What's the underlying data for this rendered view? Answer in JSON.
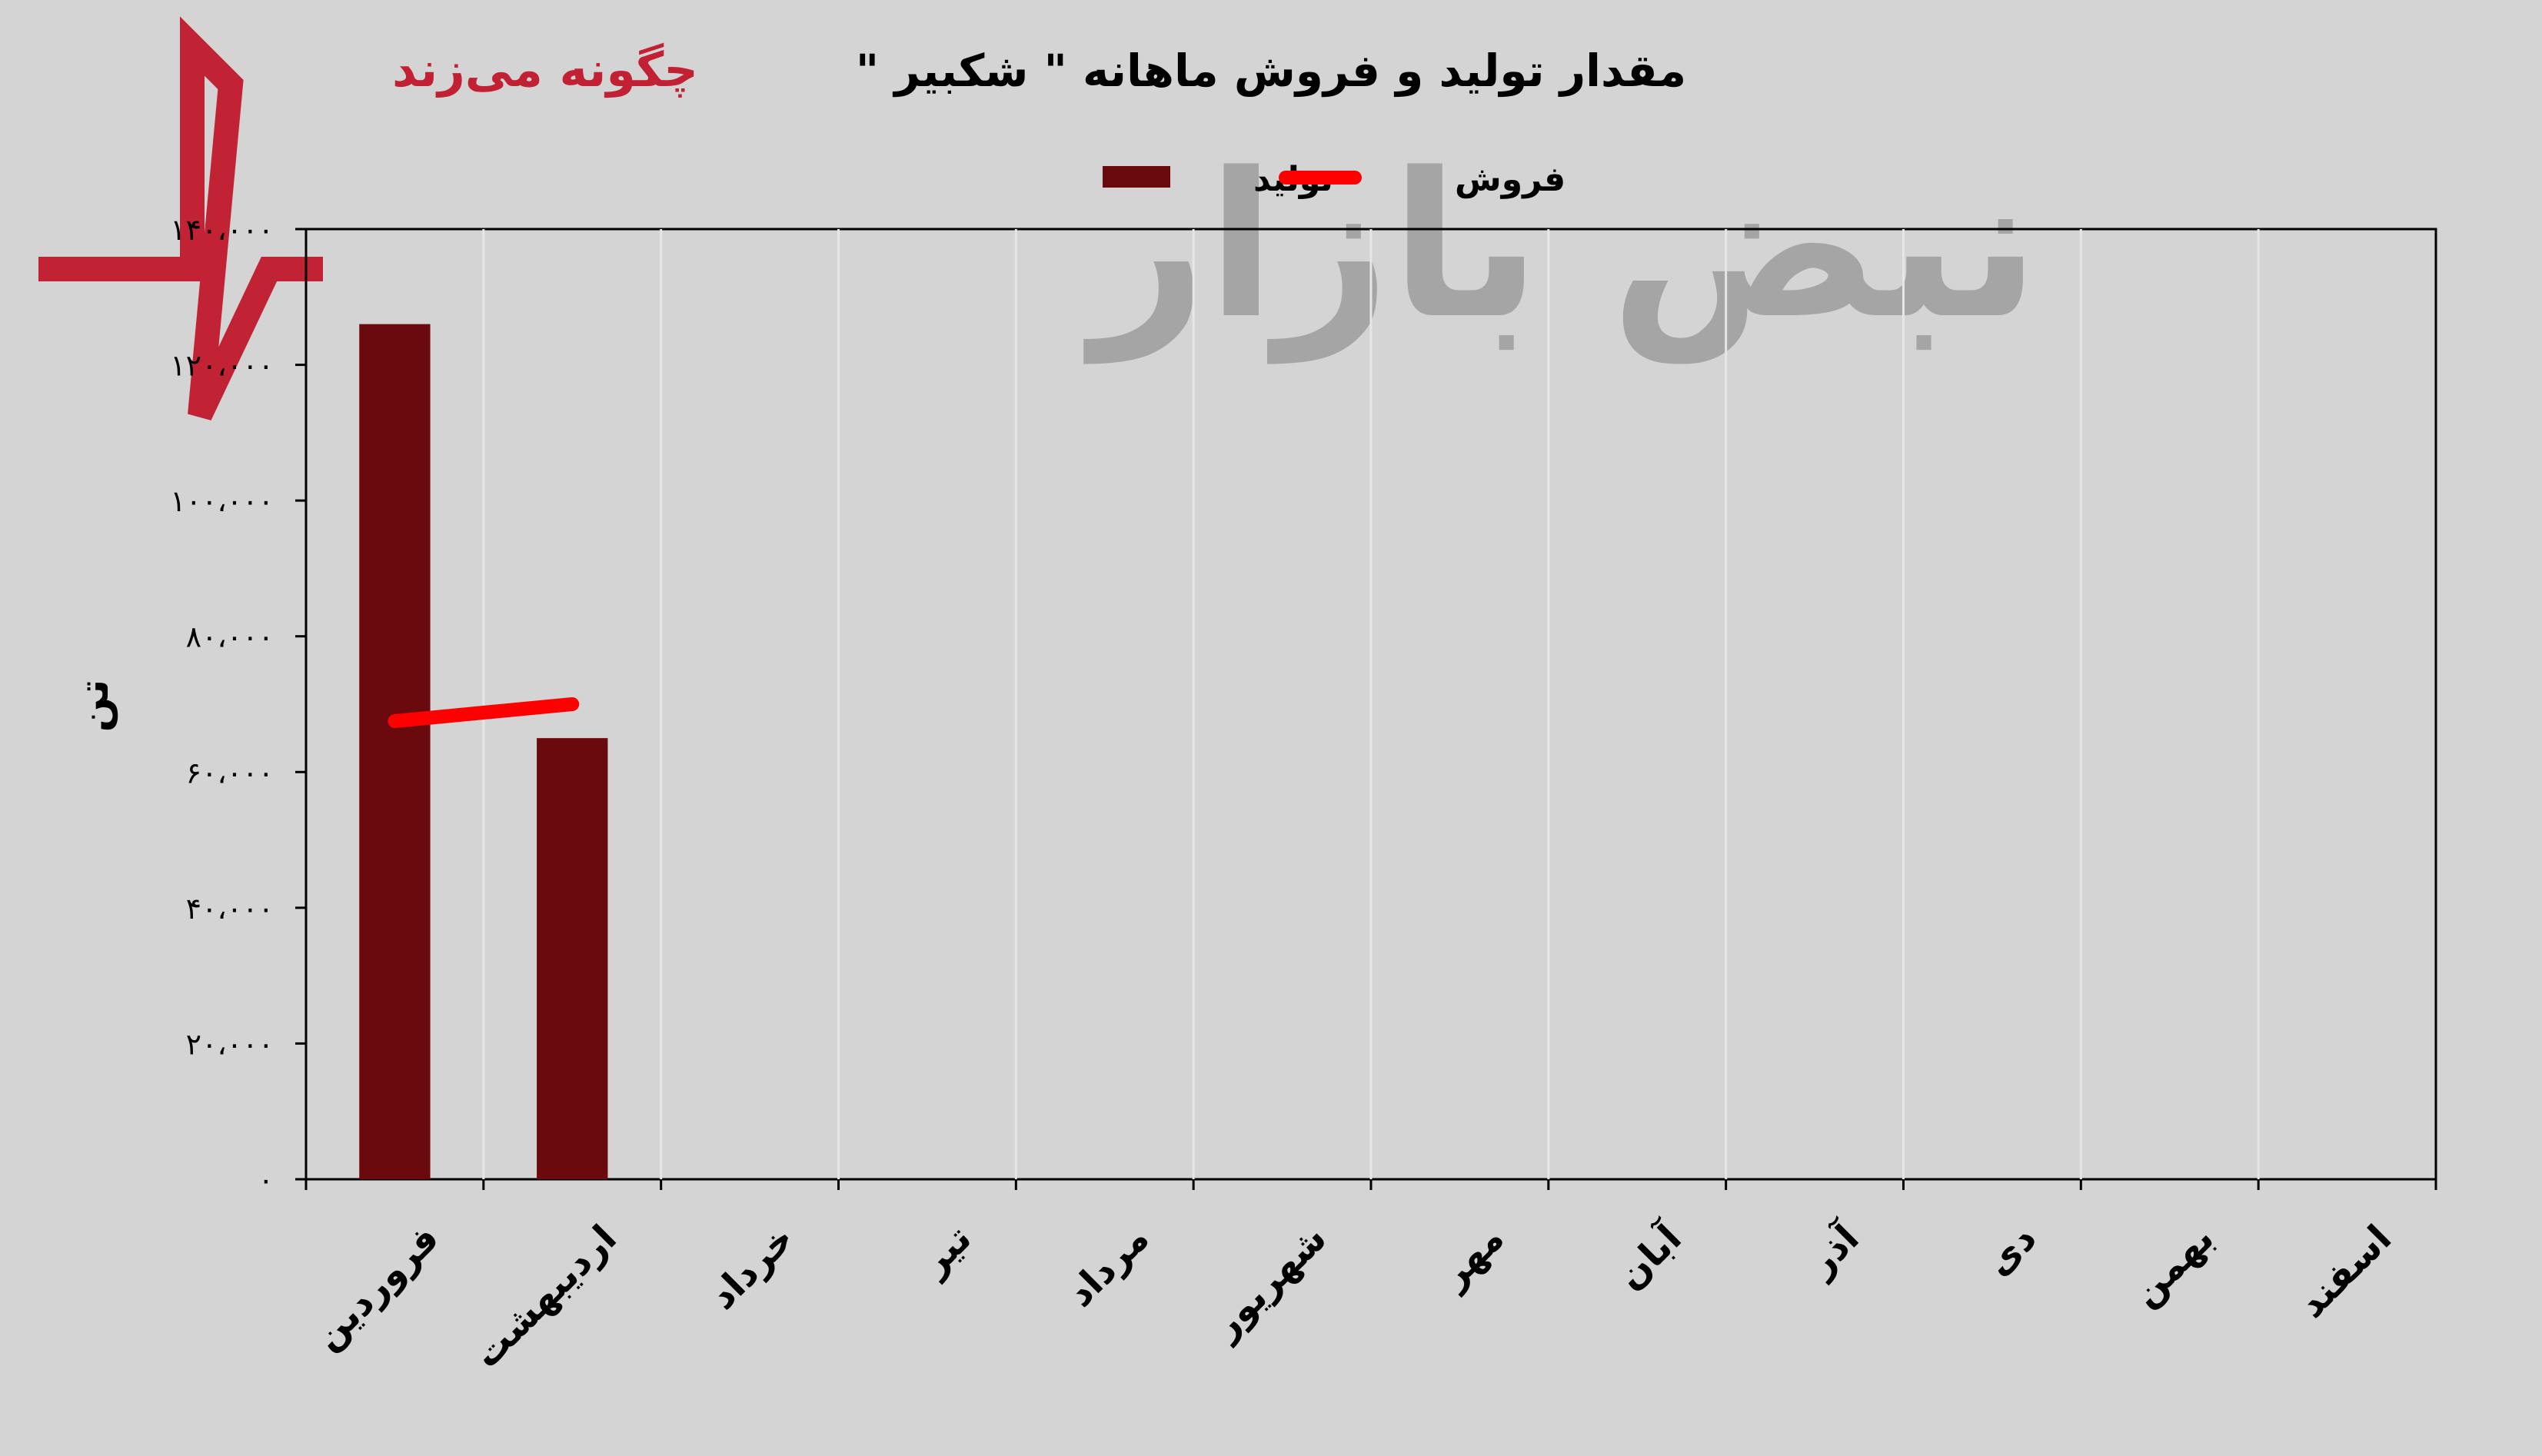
{
  "watermark": {
    "tagline": "چگونه می‌زند",
    "brand": "نبض بازار",
    "colors": {
      "red": "#c0182b",
      "gray": "#9a9a9a"
    }
  },
  "chart_data": {
    "type": "bar",
    "title": "مقدار تولید و فروش ماهانه \" شکبیر \"",
    "xlabel": "",
    "ylabel": "تن",
    "ylim": [
      0,
      140000
    ],
    "yticks": [
      0,
      20000,
      40000,
      60000,
      80000,
      100000,
      120000,
      140000
    ],
    "ytick_labels": [
      "۰",
      "۲۰،۰۰۰",
      "۴۰،۰۰۰",
      "۶۰،۰۰۰",
      "۸۰،۰۰۰",
      "۱۰۰،۰۰۰",
      "۱۲۰،۰۰۰",
      "۱۴۰،۰۰۰"
    ],
    "categories": [
      "فروردین",
      "اردیبهشت",
      "خرداد",
      "تیر",
      "مرداد",
      "شهریور",
      "مهر",
      "آبان",
      "آذر",
      "دی",
      "بهمن",
      "اسفند"
    ],
    "legend_position": "top-center",
    "grid": "vertical",
    "series": [
      {
        "name": "تولید",
        "type": "bar",
        "color": "#6b0a0e",
        "values": [
          126000,
          65000,
          null,
          null,
          null,
          null,
          null,
          null,
          null,
          null,
          null,
          null
        ]
      },
      {
        "name": "فروش",
        "type": "line",
        "color": "#ff0000",
        "values": [
          67500,
          70000,
          null,
          null,
          null,
          null,
          null,
          null,
          null,
          null,
          null,
          null
        ]
      }
    ]
  }
}
